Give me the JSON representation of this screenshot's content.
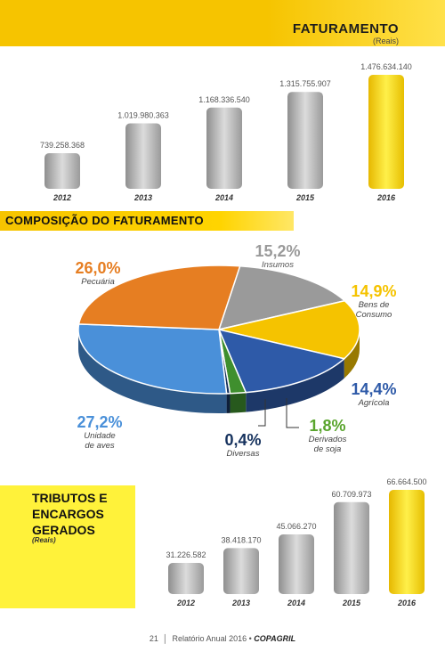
{
  "header": {
    "title": "FATURAMENTO",
    "subtitle": "(Reais)"
  },
  "section_title": "COMPOSIÇÃO DO FATURAMENTO",
  "tributos": {
    "title": "TRIBUTOS E ENCARGOS GERADOS",
    "subtitle": "(Reais)"
  },
  "footer": {
    "page": "21",
    "text": "Relatório Anual 2016 •",
    "brand": "COPAGRIL"
  },
  "colors": {
    "accent": "#f6c400",
    "bar_gray": "#b9b9b9",
    "bar_highlight": "#f6d600"
  },
  "chart_data": [
    {
      "type": "bar",
      "title": "FATURAMENTO",
      "subtitle": "(Reais)",
      "categories": [
        "2012",
        "2013",
        "2014",
        "2015",
        "2016"
      ],
      "values": [
        739258368,
        1019980363,
        1168336540,
        1315755907,
        1476634140
      ],
      "value_labels": [
        "739.258.368",
        "1.019.980.363",
        "1.168.336.540",
        "1.315.755.907",
        "1.476.634.140"
      ],
      "highlight": "2016"
    },
    {
      "type": "pie",
      "title": "COMPOSIÇÃO DO FATURAMENTO",
      "slices": [
        {
          "label": "Insumos",
          "value": 15.2,
          "display": "15,2%",
          "color": "#9a9a9a"
        },
        {
          "label": "Bens de Consumo",
          "value": 14.9,
          "display": "14,9%",
          "color": "#f5c300"
        },
        {
          "label": "Agrícola",
          "value": 14.4,
          "display": "14,4%",
          "color": "#2e5aa8"
        },
        {
          "label": "Derivados de soja",
          "value": 1.8,
          "display": "1,8%",
          "color": "#3f8f2e"
        },
        {
          "label": "Diversas",
          "value": 0.4,
          "display": "0,4%",
          "color": "#16325e"
        },
        {
          "label": "Unidade de aves",
          "value": 27.2,
          "display": "27,2%",
          "color": "#4a90d9"
        },
        {
          "label": "Pecuária",
          "value": 26.0,
          "display": "26,0%",
          "color": "#e67e22"
        }
      ]
    },
    {
      "type": "bar",
      "title": "TRIBUTOS E ENCARGOS GERADOS",
      "subtitle": "(Reais)",
      "categories": [
        "2012",
        "2013",
        "2014",
        "2015",
        "2016"
      ],
      "values": [
        31226582,
        38418170,
        45066270,
        60709973,
        66664500
      ],
      "value_labels": [
        "31.226.582",
        "38.418.170",
        "45.066.270",
        "60.709.973",
        "66.664.500"
      ],
      "highlight": "2016"
    }
  ]
}
